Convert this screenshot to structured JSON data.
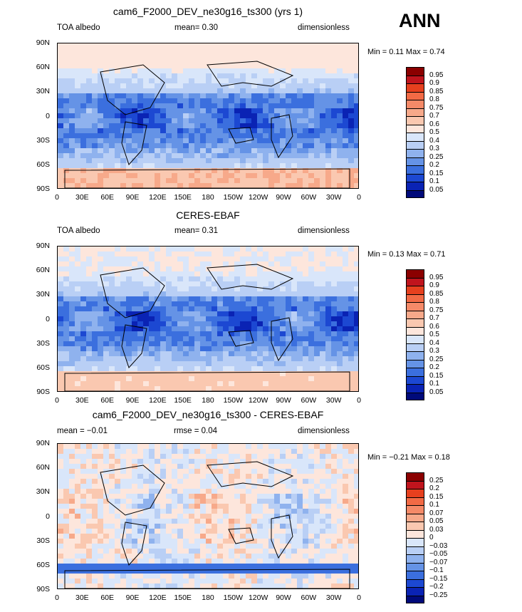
{
  "season": "ANN",
  "chart_data": [
    {
      "type": "heatmap",
      "title": "cam6_F2000_DEV_ne30g16_ts300 (yrs 1)",
      "left_label": "TOA albedo",
      "center_label": "mean=",
      "center_value": "0.30",
      "right_label": "dimensionless",
      "min_label": "Min =",
      "min": "0.11",
      "max_label": "Max =",
      "max": "0.74",
      "colorbar_levels": [
        "0.95",
        "0.9",
        "0.85",
        "0.8",
        "0.75",
        "0.7",
        "0.6",
        "0.5",
        "0.4",
        "0.3",
        "0.25",
        "0.2",
        "0.15",
        "0.1",
        "0.05"
      ],
      "colorbar_colors": [
        "#8b0000",
        "#c0141d",
        "#e6401e",
        "#f26a45",
        "#f58a68",
        "#f7a98a",
        "#fac8b0",
        "#fde6dc",
        "#d9e6fa",
        "#b9cff5",
        "#8fb2ee",
        "#6593e6",
        "#3b6fde",
        "#1c48d2",
        "#0a23b4",
        "#000a7a"
      ]
    },
    {
      "type": "heatmap",
      "title": "CERES-EBAF",
      "left_label": "TOA albedo",
      "center_label": "mean=",
      "center_value": "0.31",
      "right_label": "dimensionless",
      "min_label": "Min =",
      "min": "0.13",
      "max_label": "Max =",
      "max": "0.71",
      "colorbar_levels": [
        "0.95",
        "0.9",
        "0.85",
        "0.8",
        "0.75",
        "0.7",
        "0.6",
        "0.5",
        "0.4",
        "0.3",
        "0.25",
        "0.2",
        "0.15",
        "0.1",
        "0.05"
      ],
      "colorbar_colors": [
        "#8b0000",
        "#c0141d",
        "#e6401e",
        "#f26a45",
        "#f58a68",
        "#f7a98a",
        "#fac8b0",
        "#fde6dc",
        "#d9e6fa",
        "#b9cff5",
        "#8fb2ee",
        "#6593e6",
        "#3b6fde",
        "#1c48d2",
        "#0a23b4",
        "#000a7a"
      ]
    },
    {
      "type": "heatmap",
      "title": "cam6_F2000_DEV_ne30g16_ts300 - CERES-EBAF",
      "left_label": "mean =",
      "left_value": "-0.01",
      "center_label": "rmse =",
      "center_value": "0.04",
      "right_label": "dimensionless",
      "min_label": "Min =",
      "min": "-0.21",
      "max_label": "Max =",
      "max": "0.18",
      "colorbar_levels": [
        "0.25",
        "0.2",
        "0.15",
        "0.1",
        "0.07",
        "0.05",
        "0.03",
        "0",
        "-0.03",
        "-0.05",
        "-0.07",
        "-0.1",
        "-0.15",
        "-0.2",
        "-0.25"
      ],
      "colorbar_colors": [
        "#8b0000",
        "#c0141d",
        "#e6401e",
        "#f26a45",
        "#f58a68",
        "#f7a98a",
        "#fac8b0",
        "#fde6dc",
        "#d9e6fa",
        "#b9cff5",
        "#8fb2ee",
        "#6593e6",
        "#3b6fde",
        "#1c48d2",
        "#0a23b4",
        "#000a7a"
      ]
    }
  ],
  "axes": {
    "lat_ticks": [
      "90N",
      "60N",
      "30N",
      "0",
      "30S",
      "60S",
      "90S"
    ],
    "lon_ticks": [
      "0",
      "30E",
      "60E",
      "90E",
      "120E",
      "150E",
      "180",
      "150W",
      "120W",
      "90W",
      "60W",
      "30W",
      "0"
    ]
  }
}
